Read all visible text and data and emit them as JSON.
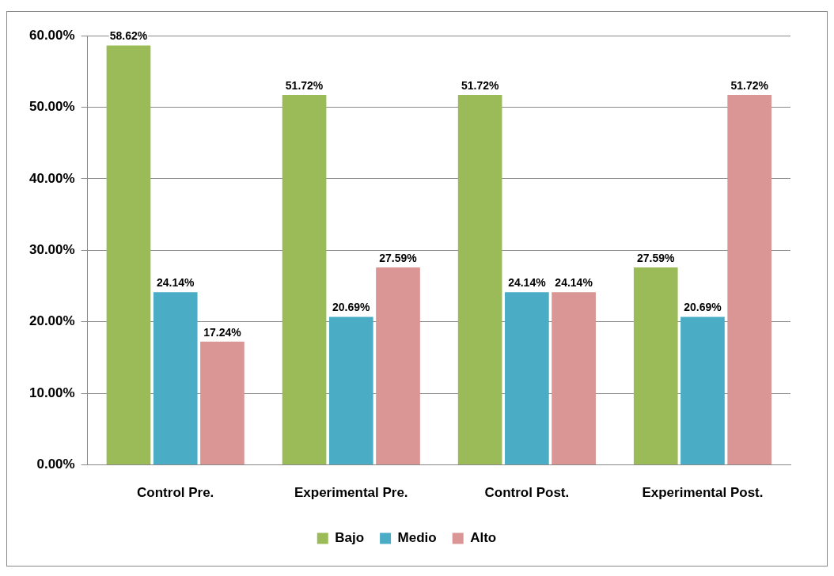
{
  "chart_data": {
    "type": "bar",
    "categories": [
      "Control Pre.",
      "Experimental Pre.",
      "Control Post.",
      "Experimental Post."
    ],
    "series": [
      {
        "name": "Bajo",
        "color": "#9bbb59",
        "values": [
          58.62,
          51.72,
          51.72,
          27.59
        ],
        "value_labels": [
          "58.62%",
          "51.72%",
          "51.72%",
          "27.59%"
        ]
      },
      {
        "name": "Medio",
        "color": "#4bacc6",
        "values": [
          24.14,
          20.69,
          24.14,
          20.69
        ],
        "value_labels": [
          "24.14%",
          "20.69%",
          "24.14%",
          "20.69%"
        ]
      },
      {
        "name": "Alto",
        "color": "#d99694",
        "values": [
          17.24,
          27.59,
          24.14,
          51.72
        ],
        "value_labels": [
          "17.24%",
          "27.59%",
          "24.14%",
          "51.72%"
        ]
      }
    ],
    "ylim": [
      0,
      60
    ],
    "yticks": [
      {
        "value": 0,
        "label": "0.00%"
      },
      {
        "value": 10,
        "label": "10.00%"
      },
      {
        "value": 20,
        "label": "20.00%"
      },
      {
        "value": 30,
        "label": "30.00%"
      },
      {
        "value": 40,
        "label": "40.00%"
      },
      {
        "value": 50,
        "label": "50.00%"
      },
      {
        "value": 60,
        "label": "60.00%"
      }
    ],
    "grid": "y",
    "legend": "bottom"
  }
}
